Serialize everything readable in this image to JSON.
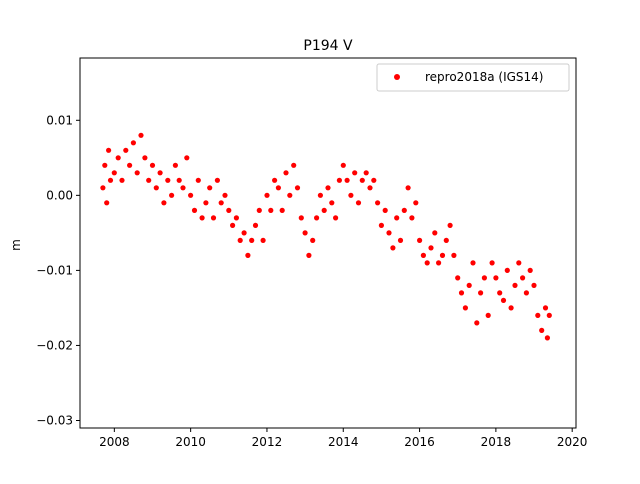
{
  "chart_data": {
    "type": "scatter",
    "title": "P194 V",
    "xlabel": "",
    "ylabel": "m",
    "xlim": [
      2007.1,
      2020.1
    ],
    "ylim": [
      -0.031,
      0.0183
    ],
    "x_ticks": [
      2008,
      2010,
      2012,
      2014,
      2016,
      2018,
      2020
    ],
    "x_tick_labels": [
      "2008",
      "2010",
      "2012",
      "2014",
      "2016",
      "2018",
      "2020"
    ],
    "y_ticks": [
      0.01,
      0.0,
      -0.01,
      -0.02,
      -0.03
    ],
    "y_tick_labels": [
      "0.01",
      "0.00",
      "−0.01",
      "−0.02",
      "−0.03"
    ],
    "grid": false,
    "legend_position": "upper-right",
    "series": [
      {
        "name": "repro2018a (IGS14)",
        "color": "#ff0000",
        "marker": "circle",
        "x": [
          2007.7,
          2007.75,
          2007.8,
          2007.85,
          2007.9,
          2008.0,
          2008.1,
          2008.2,
          2008.3,
          2008.4,
          2008.5,
          2008.6,
          2008.7,
          2008.8,
          2008.9,
          2009.0,
          2009.1,
          2009.2,
          2009.3,
          2009.4,
          2009.5,
          2009.6,
          2009.7,
          2009.8,
          2009.9,
          2010.0,
          2010.1,
          2010.2,
          2010.3,
          2010.4,
          2010.5,
          2010.6,
          2010.7,
          2010.8,
          2010.9,
          2011.0,
          2011.1,
          2011.2,
          2011.3,
          2011.4,
          2011.5,
          2011.6,
          2011.7,
          2011.8,
          2011.9,
          2012.0,
          2012.1,
          2012.2,
          2012.3,
          2012.4,
          2012.5,
          2012.6,
          2012.7,
          2012.8,
          2012.9,
          2013.0,
          2013.1,
          2013.2,
          2013.3,
          2013.4,
          2013.5,
          2013.6,
          2013.7,
          2013.8,
          2013.9,
          2014.0,
          2014.1,
          2014.2,
          2014.3,
          2014.4,
          2014.5,
          2014.6,
          2014.7,
          2014.8,
          2014.9,
          2015.0,
          2015.1,
          2015.2,
          2015.3,
          2015.4,
          2015.5,
          2015.6,
          2015.7,
          2015.8,
          2015.9,
          2016.0,
          2016.1,
          2016.2,
          2016.3,
          2016.4,
          2016.5,
          2016.6,
          2016.7,
          2016.8,
          2016.9,
          2017.0,
          2017.1,
          2017.2,
          2017.3,
          2017.4,
          2017.5,
          2017.6,
          2017.7,
          2017.8,
          2017.9,
          2018.0,
          2018.1,
          2018.2,
          2018.3,
          2018.4,
          2018.5,
          2018.6,
          2018.7,
          2018.8,
          2018.9,
          2019.0,
          2019.1,
          2019.2,
          2019.3,
          2019.35,
          2019.4
        ],
        "y": [
          0.001,
          0.004,
          -0.001,
          0.006,
          0.002,
          0.003,
          0.005,
          0.002,
          0.006,
          0.004,
          0.007,
          0.003,
          0.008,
          0.005,
          0.002,
          0.004,
          0.001,
          0.003,
          -0.001,
          0.002,
          0.0,
          0.004,
          0.002,
          0.001,
          0.005,
          0.0,
          -0.002,
          0.002,
          -0.003,
          -0.001,
          0.001,
          -0.003,
          0.002,
          -0.001,
          0.0,
          -0.002,
          -0.004,
          -0.003,
          -0.006,
          -0.005,
          -0.008,
          -0.006,
          -0.004,
          -0.002,
          -0.006,
          0.0,
          -0.002,
          0.002,
          0.001,
          -0.002,
          0.003,
          0.0,
          0.004,
          0.001,
          -0.003,
          -0.005,
          -0.008,
          -0.006,
          -0.003,
          0.0,
          -0.002,
          0.001,
          -0.001,
          -0.003,
          0.002,
          0.004,
          0.002,
          0.0,
          0.003,
          -0.001,
          0.002,
          0.003,
          0.001,
          0.002,
          -0.001,
          -0.004,
          -0.002,
          -0.005,
          -0.007,
          -0.003,
          -0.006,
          -0.002,
          0.001,
          -0.003,
          -0.001,
          -0.006,
          -0.008,
          -0.009,
          -0.007,
          -0.005,
          -0.009,
          -0.008,
          -0.006,
          -0.004,
          -0.008,
          -0.011,
          -0.013,
          -0.015,
          -0.012,
          -0.009,
          -0.017,
          -0.013,
          -0.011,
          -0.016,
          -0.009,
          -0.011,
          -0.013,
          -0.014,
          -0.01,
          -0.015,
          -0.012,
          -0.009,
          -0.011,
          -0.013,
          -0.01,
          -0.012,
          -0.016,
          -0.018,
          -0.015,
          -0.019,
          -0.016
        ]
      }
    ]
  }
}
